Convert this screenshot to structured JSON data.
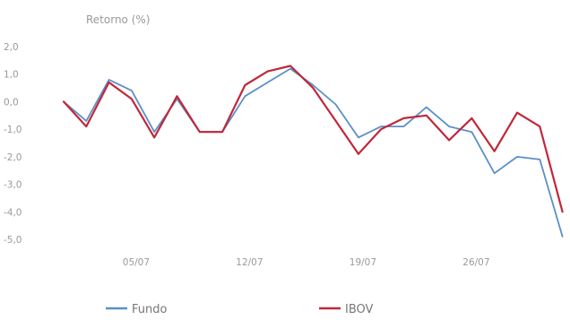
{
  "chart_data": {
    "type": "line",
    "ylabel": "Retorno (%)",
    "y_ticks": [
      "2,0",
      "1,0",
      "0,0",
      "-1,0",
      "-2,0",
      "-3,0",
      "-4,0",
      "-5,0"
    ],
    "ylim": [
      -5,
      2
    ],
    "x_ticks": [
      {
        "label": "05/07",
        "index": 3
      },
      {
        "label": "12/07",
        "index": 8
      },
      {
        "label": "19/07",
        "index": 13
      },
      {
        "label": "26/07",
        "index": 18
      }
    ],
    "grid": false,
    "legend": "bottom",
    "series": [
      {
        "name": "Fundo",
        "color": "#5b8fc7",
        "values": [
          0.0,
          -0.7,
          0.8,
          0.4,
          -1.1,
          0.1,
          -1.1,
          -1.1,
          0.2,
          0.7,
          1.2,
          0.6,
          -0.1,
          -1.3,
          -0.9,
          -0.9,
          -0.2,
          -0.9,
          -1.1,
          -2.6,
          -2.0,
          -2.1,
          -4.9
        ]
      },
      {
        "name": "IBOV",
        "color": "#c0283a",
        "values": [
          0.0,
          -0.9,
          0.7,
          0.1,
          -1.3,
          0.2,
          -1.1,
          -1.1,
          0.6,
          1.1,
          1.3,
          0.5,
          -0.7,
          -1.9,
          -1.0,
          -0.6,
          -0.5,
          -1.4,
          -0.6,
          -1.8,
          -0.4,
          -0.9,
          -4.0
        ]
      }
    ]
  }
}
